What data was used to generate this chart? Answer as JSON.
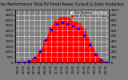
{
  "title": "Solar PV/Inverter Performance Total PV Panel Power Output & Solar Radiation",
  "bg_color": "#808080",
  "plot_bg_color": "#808080",
  "bar_color": "#ff0000",
  "line_color": "#0000ff",
  "x_hours": [
    4,
    5,
    6,
    7,
    8,
    9,
    10,
    11,
    12,
    13,
    14,
    15,
    16,
    17,
    18,
    19,
    20
  ],
  "pv_power": [
    0,
    2,
    60,
    350,
    950,
    2100,
    3300,
    4050,
    4300,
    4250,
    3900,
    3700,
    3100,
    2000,
    950,
    250,
    5
  ],
  "solar_rad": [
    0,
    2,
    25,
    90,
    210,
    420,
    620,
    720,
    760,
    730,
    690,
    630,
    510,
    330,
    145,
    45,
    2
  ],
  "ylim": [
    0,
    5000
  ],
  "y2lim": [
    0,
    1000
  ],
  "ylabel_right_ticks": [
    0,
    100,
    200,
    300,
    400,
    500,
    600,
    700,
    800,
    900,
    1000
  ],
  "ylabel_left_ticks": [
    0,
    500,
    1000,
    1500,
    2000,
    2500,
    3000,
    3500,
    4000,
    4500,
    5000
  ],
  "legend_pv": "Total PV Panel Power Output",
  "legend_rad": "Solar Radiation",
  "title_fontsize": 3.5,
  "tick_fontsize": 2.8,
  "grid_color": "#aaaaaa",
  "dashed_color": "#ffffff"
}
